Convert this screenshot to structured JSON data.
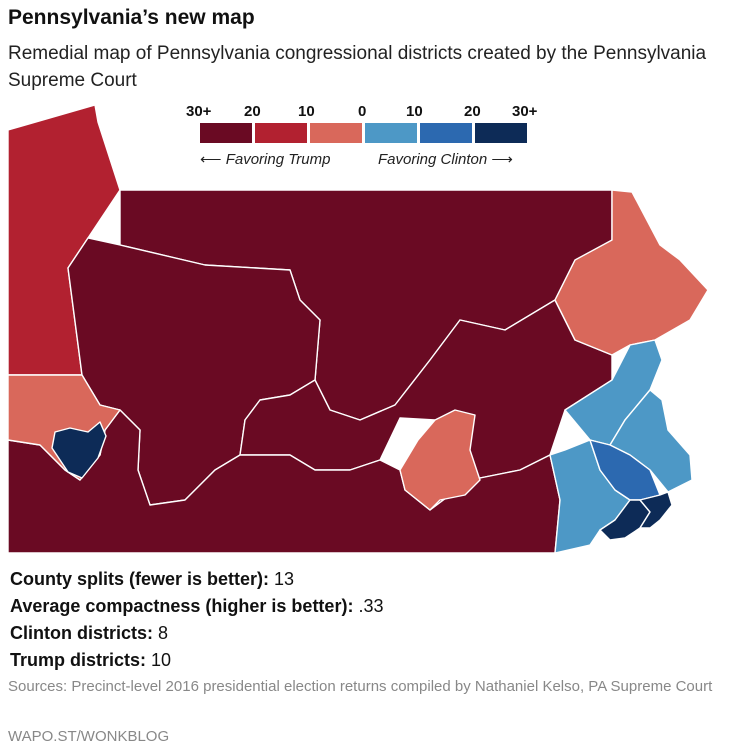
{
  "title": "Pennsylvania’s new map",
  "subtitle": "Remedial map of Pennsylvania congressional districts created by the Pennsylvania Supreme Court",
  "legend": {
    "tick_labels": [
      "30+",
      "20",
      "10",
      "0",
      "10",
      "20",
      "30+"
    ],
    "bins": [
      {
        "color": "#6a0a23"
      },
      {
        "color": "#b22130"
      },
      {
        "color": "#d9685b"
      },
      {
        "color": "#4d98c6"
      },
      {
        "color": "#2c69b0"
      },
      {
        "color": "#0d2b57"
      }
    ],
    "favoring_trump": "Favoring Trump",
    "favoring_clinton": "Favoring Clinton"
  },
  "map": {
    "districts": [
      {
        "id": "nw",
        "lean": "Trump 20",
        "color": "#b22130"
      },
      {
        "id": "north-central",
        "lean": "Trump 30+",
        "color": "#6a0a23"
      },
      {
        "id": "west-central",
        "lean": "Trump 30+",
        "color": "#6a0a23"
      },
      {
        "id": "southwest",
        "lean": "Trump 30+",
        "color": "#6a0a23"
      },
      {
        "id": "pittsburgh-suburbs",
        "lean": "Trump 10",
        "color": "#d9685b"
      },
      {
        "id": "pittsburgh",
        "lean": "Clinton 30+",
        "color": "#0d2b57"
      },
      {
        "id": "northeast",
        "lean": "Trump 10",
        "color": "#d9685b"
      },
      {
        "id": "harrisburg",
        "lean": "Trump 10",
        "color": "#d9685b"
      },
      {
        "id": "south-central",
        "lean": "Trump 30+",
        "color": "#6a0a23"
      },
      {
        "id": "lehigh",
        "lean": "Clinton 0-10",
        "color": "#4d98c6"
      },
      {
        "id": "bucks",
        "lean": "Clinton 0-10",
        "color": "#4d98c6"
      },
      {
        "id": "chester",
        "lean": "Clinton 0-10",
        "color": "#4d98c6"
      },
      {
        "id": "montgomery",
        "lean": "Clinton 10-20",
        "color": "#2c69b0"
      },
      {
        "id": "philadelphia-1",
        "lean": "Clinton 30+",
        "color": "#0d2b57"
      },
      {
        "id": "philadelphia-2",
        "lean": "Clinton 30+",
        "color": "#0d2b57"
      }
    ]
  },
  "stats": [
    {
      "label": "County splits (fewer is better):",
      "value": "13"
    },
    {
      "label": "Average compactness (higher is better):",
      "value": ".33"
    },
    {
      "label": "Clinton districts:",
      "value": "8"
    },
    {
      "label": "Trump districts:",
      "value": "10"
    }
  ],
  "sources": "Sources: Precinct-level 2016 presidential election returns compiled by Nathaniel Kelso, PA Supreme Court",
  "credit": "WAPO.ST/WONKBLOG"
}
